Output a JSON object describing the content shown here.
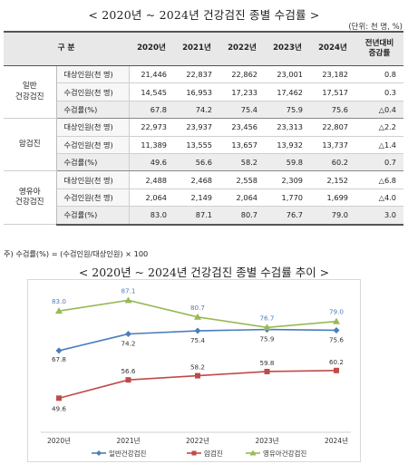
{
  "title": "< 2020년 ~ 2024년 건강검진 종별 수검률 >",
  "unit": "(단위: 천 명, %)",
  "table": {
    "headers": [
      "구 분",
      "2020년",
      "2021년",
      "2022년",
      "2023년",
      "2024년",
      "전년대비\n증감률"
    ],
    "groups": [
      {
        "name": "일반\n건강검진",
        "rows": [
          {
            "label": "대상인원(천 명)",
            "values": [
              "21,446",
              "22,837",
              "22,862",
              "23,001",
              "23,182"
            ],
            "change": "0.8"
          },
          {
            "label": "수검인원(천 명)",
            "values": [
              "14,545",
              "16,953",
              "17,233",
              "17,462",
              "17,517"
            ],
            "change": "0.3"
          },
          {
            "label": "수검률(%)",
            "values": [
              "67.8",
              "74.2",
              "75.4",
              "75.9",
              "75.6"
            ],
            "change": "△0.4"
          }
        ]
      },
      {
        "name": "암검진",
        "rows": [
          {
            "label": "대상인원(천 명)",
            "values": [
              "22,973",
              "23,937",
              "23,456",
              "23,313",
              "22,807"
            ],
            "change": "△2.2"
          },
          {
            "label": "수검인원(천 명)",
            "values": [
              "11,389",
              "13,555",
              "13,657",
              "13,932",
              "13,737"
            ],
            "change": "△1.4"
          },
          {
            "label": "수검률(%)",
            "values": [
              "49.6",
              "56.6",
              "58.2",
              "59.8",
              "60.2"
            ],
            "change": "0.7"
          }
        ]
      },
      {
        "name": "영유아\n건강검진",
        "rows": [
          {
            "label": "대상인원(천 명)",
            "values": [
              "2,488",
              "2,468",
              "2,558",
              "2,309",
              "2,152"
            ],
            "change": "△6.8"
          },
          {
            "label": "수검인원(천 명)",
            "values": [
              "2,064",
              "2,149",
              "2,064",
              "1,770",
              "1,699"
            ],
            "change": "△4.0"
          },
          {
            "label": "수검률(%)",
            "values": [
              "83.0",
              "87.1",
              "80.7",
              "76.7",
              "79.0"
            ],
            "change": "3.0"
          }
        ]
      }
    ]
  },
  "note": "주) 수검률(%) = (수검인원/대상인원) × 100",
  "chart_title": "< 2020년 ~ 2024년 건강검진 종별 수검률 추이 >",
  "chart_data": {
    "type": "line",
    "categories": [
      "2020년",
      "2021년",
      "2022년",
      "2023년",
      "2024년"
    ],
    "series": [
      {
        "name": "일반건강검진",
        "color": "#4a7ebb",
        "marker": "diamond",
        "values": [
          67.8,
          74.2,
          75.4,
          75.9,
          75.6
        ]
      },
      {
        "name": "암검진",
        "color": "#be4b48",
        "marker": "square",
        "values": [
          49.6,
          56.6,
          58.2,
          59.8,
          60.2
        ]
      },
      {
        "name": "영유아건강검진",
        "color": "#98b954",
        "marker": "triangle",
        "values": [
          83.0,
          87.1,
          80.7,
          76.7,
          79.0
        ]
      }
    ],
    "ylim": [
      40,
      90
    ],
    "grid": false,
    "legend": "bottom"
  }
}
